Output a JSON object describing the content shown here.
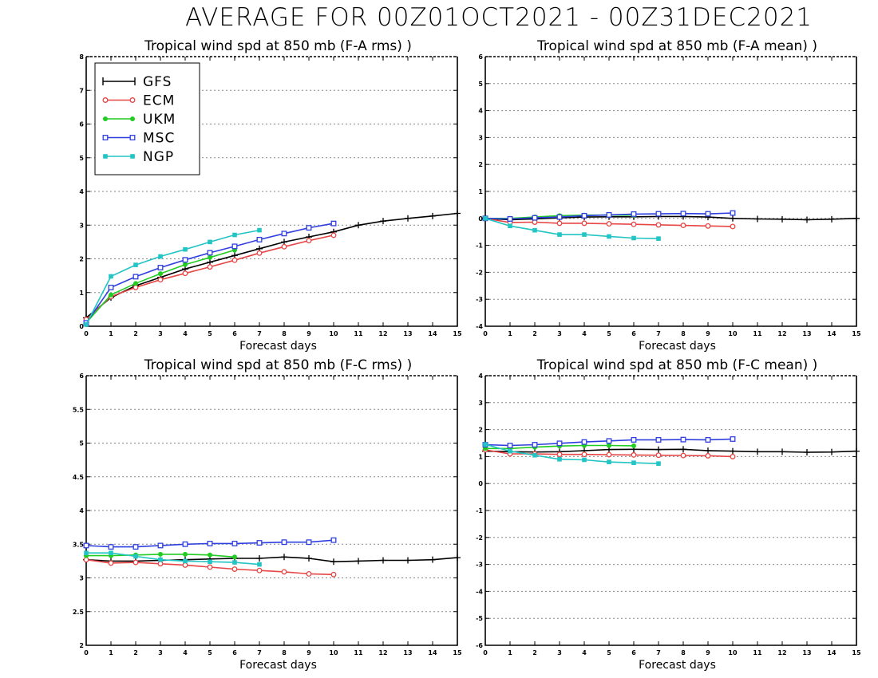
{
  "title": "AVERAGE FOR 00Z01OCT2021 - 00Z31DEC2021",
  "legend": [
    {
      "name": "GFS",
      "color": "#000000",
      "marker": "plus"
    },
    {
      "name": "ECM",
      "color": "#e84545",
      "marker": "circle"
    },
    {
      "name": "UKM",
      "color": "#22cc22",
      "marker": "dot"
    },
    {
      "name": "MSC",
      "color": "#2f3fdf",
      "marker": "square"
    },
    {
      "name": "NGP",
      "color": "#22c4c4",
      "marker": "filled-square"
    }
  ],
  "chart_data": [
    {
      "type": "line",
      "title": "Tropical wind spd at 850 mb (F-A rms) )",
      "xlabel": "Forecast days",
      "xlim": [
        0,
        15
      ],
      "ylim": [
        0,
        8
      ],
      "yticks": [
        "0",
        "1",
        "2",
        "3",
        "4",
        "5",
        "6",
        "7",
        "8"
      ],
      "xticks": [
        "0",
        "1",
        "2",
        "3",
        "4",
        "5",
        "6",
        "7",
        "8",
        "9",
        "10",
        "11",
        "12",
        "13",
        "14",
        "15"
      ],
      "grid": true,
      "legend_position": "top-left",
      "series": [
        {
          "name": "GFS",
          "x": [
            0,
            1,
            2,
            3,
            4,
            5,
            6,
            7,
            8,
            9,
            10,
            11,
            12,
            13,
            14,
            15
          ],
          "values": [
            0.25,
            0.85,
            1.2,
            1.45,
            1.7,
            1.9,
            2.1,
            2.3,
            2.5,
            2.65,
            2.8,
            3.0,
            3.12,
            3.2,
            3.27,
            3.35
          ]
        },
        {
          "name": "ECM",
          "x": [
            0,
            1,
            2,
            3,
            4,
            5,
            6,
            7,
            8,
            9,
            10
          ],
          "values": [
            0.2,
            0.88,
            1.15,
            1.38,
            1.57,
            1.76,
            1.96,
            2.17,
            2.36,
            2.54,
            2.7
          ]
        },
        {
          "name": "UKM",
          "x": [
            0,
            1,
            2,
            3,
            4,
            5,
            6
          ],
          "values": [
            0.1,
            0.93,
            1.27,
            1.56,
            1.83,
            2.04,
            2.26
          ]
        },
        {
          "name": "MSC",
          "x": [
            0,
            1,
            2,
            3,
            4,
            5,
            6,
            7,
            8,
            9,
            10
          ],
          "values": [
            0.1,
            1.15,
            1.47,
            1.74,
            1.97,
            2.18,
            2.37,
            2.57,
            2.75,
            2.92,
            3.05
          ]
        },
        {
          "name": "NGP",
          "x": [
            0,
            1,
            2,
            3,
            4,
            5,
            6,
            7
          ],
          "values": [
            0.05,
            1.48,
            1.82,
            2.07,
            2.28,
            2.5,
            2.71,
            2.85
          ]
        }
      ]
    },
    {
      "type": "line",
      "title": "Tropical wind spd at 850 mb (F-A mean) )",
      "xlabel": "Forecast days",
      "xlim": [
        0,
        15
      ],
      "ylim": [
        -4,
        6
      ],
      "yticks": [
        "-4",
        "-3",
        "-2",
        "-1",
        "0",
        "1",
        "2",
        "3",
        "4",
        "5",
        "6"
      ],
      "xticks": [
        "0",
        "1",
        "2",
        "3",
        "4",
        "5",
        "6",
        "7",
        "8",
        "9",
        "10",
        "11",
        "12",
        "13",
        "14",
        "15"
      ],
      "grid": true,
      "series": [
        {
          "name": "GFS",
          "x": [
            0,
            1,
            2,
            3,
            4,
            5,
            6,
            7,
            8,
            9,
            10,
            11,
            12,
            13,
            14,
            15
          ],
          "values": [
            0.0,
            -0.05,
            -0.02,
            0.02,
            0.05,
            0.06,
            0.06,
            0.07,
            0.07,
            0.05,
            0.0,
            -0.02,
            -0.03,
            -0.05,
            -0.03,
            0.0
          ]
        },
        {
          "name": "ECM",
          "x": [
            0,
            1,
            2,
            3,
            4,
            5,
            6,
            7,
            8,
            9,
            10
          ],
          "values": [
            0.0,
            -0.15,
            -0.14,
            -0.18,
            -0.18,
            -0.2,
            -0.22,
            -0.24,
            -0.26,
            -0.28,
            -0.3
          ]
        },
        {
          "name": "UKM",
          "x": [
            0,
            1,
            2,
            3,
            4,
            5,
            6
          ],
          "values": [
            0.0,
            0.0,
            0.05,
            0.1,
            0.12,
            0.12,
            0.12
          ]
        },
        {
          "name": "MSC",
          "x": [
            0,
            1,
            2,
            3,
            4,
            5,
            6,
            7,
            8,
            9,
            10
          ],
          "values": [
            0.0,
            -0.02,
            0.02,
            0.05,
            0.1,
            0.13,
            0.16,
            0.17,
            0.18,
            0.17,
            0.2
          ]
        },
        {
          "name": "NGP",
          "x": [
            0,
            1,
            2,
            3,
            4,
            5,
            6,
            7
          ],
          "values": [
            0.0,
            -0.28,
            -0.44,
            -0.6,
            -0.6,
            -0.67,
            -0.73,
            -0.75
          ]
        }
      ]
    },
    {
      "type": "line",
      "title": "Tropical wind spd at 850 mb (F-C rms) )",
      "xlabel": "Forecast days",
      "xlim": [
        0,
        15
      ],
      "ylim": [
        2,
        6
      ],
      "yticks": [
        "2",
        "2.5",
        "3",
        "3.5",
        "4",
        "4.5",
        "5",
        "5.5",
        "6"
      ],
      "xticks": [
        "0",
        "1",
        "2",
        "3",
        "4",
        "5",
        "6",
        "7",
        "8",
        "9",
        "10",
        "11",
        "12",
        "13",
        "14",
        "15"
      ],
      "grid": true,
      "series": [
        {
          "name": "GFS",
          "x": [
            0,
            1,
            2,
            3,
            4,
            5,
            6,
            7,
            8,
            9,
            10,
            11,
            12,
            13,
            14,
            15
          ],
          "values": [
            3.27,
            3.25,
            3.25,
            3.26,
            3.27,
            3.28,
            3.29,
            3.29,
            3.31,
            3.29,
            3.24,
            3.25,
            3.26,
            3.26,
            3.27,
            3.3
          ]
        },
        {
          "name": "ECM",
          "x": [
            0,
            1,
            2,
            3,
            4,
            5,
            6,
            7,
            8,
            9,
            10
          ],
          "values": [
            3.27,
            3.22,
            3.23,
            3.21,
            3.19,
            3.16,
            3.13,
            3.11,
            3.09,
            3.06,
            3.05
          ]
        },
        {
          "name": "UKM",
          "x": [
            0,
            1,
            2,
            3,
            4,
            5,
            6
          ],
          "values": [
            3.33,
            3.33,
            3.34,
            3.35,
            3.35,
            3.34,
            3.31
          ]
        },
        {
          "name": "MSC",
          "x": [
            0,
            1,
            2,
            3,
            4,
            5,
            6,
            7,
            8,
            9,
            10
          ],
          "values": [
            3.48,
            3.46,
            3.46,
            3.48,
            3.5,
            3.51,
            3.51,
            3.52,
            3.53,
            3.53,
            3.56
          ]
        },
        {
          "name": "NGP",
          "x": [
            0,
            1,
            2,
            3,
            4,
            5,
            6,
            7
          ],
          "values": [
            3.37,
            3.37,
            3.32,
            3.27,
            3.25,
            3.24,
            3.23,
            3.2
          ]
        }
      ]
    },
    {
      "type": "line",
      "title": "Tropical wind spd at 850 mb (F-C mean) )",
      "xlabel": "Forecast days",
      "xlim": [
        0,
        15
      ],
      "ylim": [
        -6,
        4
      ],
      "yticks": [
        "-6",
        "-5",
        "-4",
        "-3",
        "-2",
        "-1",
        "0",
        "1",
        "2",
        "3",
        "4"
      ],
      "xticks": [
        "0",
        "1",
        "2",
        "3",
        "4",
        "5",
        "6",
        "7",
        "8",
        "9",
        "10",
        "11",
        "12",
        "13",
        "14",
        "15"
      ],
      "grid": true,
      "series": [
        {
          "name": "GFS",
          "x": [
            0,
            1,
            2,
            3,
            4,
            5,
            6,
            7,
            8,
            9,
            10,
            11,
            12,
            13,
            14,
            15
          ],
          "values": [
            1.2,
            1.18,
            1.17,
            1.18,
            1.22,
            1.26,
            1.27,
            1.26,
            1.27,
            1.22,
            1.2,
            1.18,
            1.18,
            1.16,
            1.17,
            1.2
          ]
        },
        {
          "name": "ECM",
          "x": [
            0,
            1,
            2,
            3,
            4,
            5,
            6,
            7,
            8,
            9,
            10
          ],
          "values": [
            1.25,
            1.1,
            1.1,
            1.08,
            1.08,
            1.07,
            1.06,
            1.05,
            1.04,
            1.03,
            1.0
          ]
        },
        {
          "name": "UKM",
          "x": [
            0,
            1,
            2,
            3,
            4,
            5,
            6
          ],
          "values": [
            1.3,
            1.3,
            1.35,
            1.39,
            1.41,
            1.41,
            1.4
          ]
        },
        {
          "name": "MSC",
          "x": [
            0,
            1,
            2,
            3,
            4,
            5,
            6,
            7,
            8,
            9,
            10
          ],
          "values": [
            1.44,
            1.41,
            1.44,
            1.49,
            1.54,
            1.58,
            1.62,
            1.62,
            1.63,
            1.62,
            1.65
          ]
        },
        {
          "name": "NGP",
          "x": [
            0,
            1,
            2,
            3,
            4,
            5,
            6,
            7
          ],
          "values": [
            1.45,
            1.2,
            1.05,
            0.9,
            0.88,
            0.8,
            0.77,
            0.74
          ]
        }
      ]
    }
  ]
}
